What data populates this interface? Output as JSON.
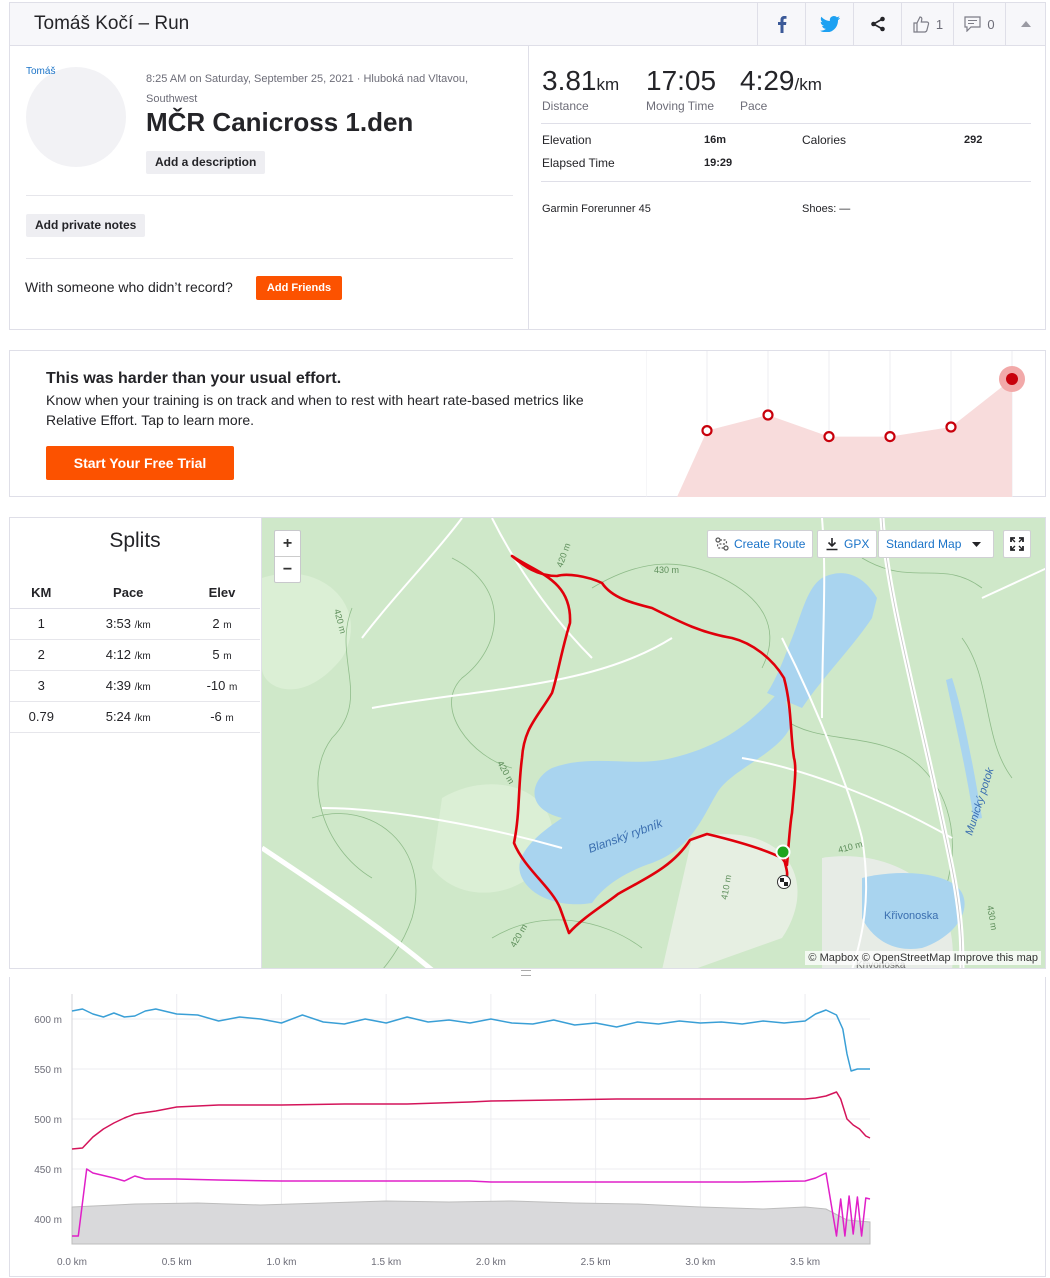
{
  "header": {
    "title": "Tomáš Kočí – Run",
    "kudos_count": "1",
    "comments_count": "0"
  },
  "athlete": {
    "name": "Tomáš"
  },
  "activity": {
    "meta": "8:25 AM on Saturday, September 25, 2021 · Hluboká nad Vltavou, Southwest",
    "title": "MČR Canicross 1.den",
    "add_description": "Add a description",
    "add_private_notes": "Add private notes",
    "friends_prompt": "With someone who didn’t record?",
    "add_friends": "Add Friends"
  },
  "stats": {
    "distance": {
      "value": "3.81",
      "unit": "km",
      "label": "Distance"
    },
    "moving_time": {
      "value": "17:05",
      "label": "Moving Time"
    },
    "pace": {
      "value": "4:29",
      "unit": "/km",
      "label": "Pace"
    },
    "elevation": {
      "label": "Elevation",
      "value": "16m"
    },
    "calories": {
      "label": "Calories",
      "value": "292"
    },
    "elapsed": {
      "label": "Elapsed Time",
      "value": "19:29"
    },
    "device": "Garmin Forerunner 45",
    "shoes": "Shoes: —"
  },
  "effort": {
    "heading": "This was harder than your usual effort.",
    "body": "Know when your training is on track and when to rest with heart rate-based metrics like Relative Effort. Tap to learn more.",
    "cta": "Start Your Free Trial",
    "points": [
      0.47,
      0.6,
      0.42,
      0.42,
      0.5,
      0.9
    ]
  },
  "splits": {
    "title": "Splits",
    "headers": [
      "KM",
      "Pace",
      "Elev"
    ],
    "rows": [
      {
        "km": "1",
        "pace": "3:53",
        "pace_unit": "/km",
        "elev": "2",
        "elev_unit": "m"
      },
      {
        "km": "2",
        "pace": "4:12",
        "pace_unit": "/km",
        "elev": "5",
        "elev_unit": "m"
      },
      {
        "km": "3",
        "pace": "4:39",
        "pace_unit": "/km",
        "elev": "-10",
        "elev_unit": "m"
      },
      {
        "km": "0.79",
        "pace": "5:24",
        "pace_unit": "/km",
        "elev": "-6",
        "elev_unit": "m"
      }
    ]
  },
  "map": {
    "zoom_in": "+",
    "zoom_out": "−",
    "create_route": "Create Route",
    "gpx": "GPX",
    "map_style": "Standard Map",
    "attribution": "© Mapbox © OpenStreetMap Improve this map",
    "labels": {
      "lake_main": "Blanský rybník",
      "lake_small": "Křivonoska",
      "lake_small_2": "Křivonoska",
      "stream": "Munický potok",
      "c430a": "430 m",
      "c430b": "430 m",
      "c420a": "420 m",
      "c420b": "420 m",
      "c420c": "420 m",
      "c420d": "420 m",
      "c410a": "410 m",
      "c410b": "410 m",
      "c430c": "430 m"
    },
    "colors": {
      "route": "#e0000b",
      "start": "#1ea51e",
      "water": "#a9d4ef",
      "land": "#cfe8c9"
    }
  },
  "chart_data": {
    "type": "line",
    "xlabel": "",
    "ylabel": "",
    "xlim": [
      0,
      3.81
    ],
    "ylim": [
      375,
      625
    ],
    "x_ticks": [
      "0.0 km",
      "0.5 km",
      "1.0 km",
      "1.5 km",
      "2.0 km",
      "2.5 km",
      "3.0 km",
      "3.5 km"
    ],
    "y_ticks": [
      "400 m",
      "450 m",
      "500 m",
      "550 m",
      "600 m"
    ],
    "x_tick_values": [
      0,
      0.5,
      1,
      1.5,
      2,
      2.5,
      3,
      3.5
    ],
    "y_tick_values": [
      400,
      450,
      500,
      550,
      600
    ],
    "series": [
      {
        "color": "#3a9fd6",
        "x": [
          0,
          0.05,
          0.1,
          0.15,
          0.2,
          0.25,
          0.3,
          0.35,
          0.4,
          0.5,
          0.6,
          0.7,
          0.8,
          0.9,
          1.0,
          1.1,
          1.2,
          1.3,
          1.4,
          1.5,
          1.6,
          1.7,
          1.8,
          1.9,
          2.0,
          2.1,
          2.2,
          2.3,
          2.4,
          2.5,
          2.6,
          2.7,
          2.8,
          2.9,
          3.0,
          3.1,
          3.2,
          3.3,
          3.4,
          3.5,
          3.55,
          3.6,
          3.65,
          3.68,
          3.7,
          3.72,
          3.75,
          3.78,
          3.81
        ],
        "y": [
          608,
          610,
          605,
          602,
          606,
          602,
          603,
          608,
          610,
          605,
          604,
          598,
          602,
          600,
          596,
          604,
          597,
          595,
          600,
          596,
          602,
          597,
          599,
          596,
          600,
          596,
          595,
          599,
          594,
          596,
          592,
          597,
          595,
          598,
          596,
          597,
          595,
          598,
          596,
          598,
          605,
          609,
          604,
          590,
          565,
          548,
          550,
          550,
          550
        ]
      },
      {
        "color": "#d4145a",
        "x": [
          0,
          0.05,
          0.1,
          0.15,
          0.2,
          0.25,
          0.3,
          0.4,
          0.5,
          0.7,
          1.0,
          1.3,
          1.6,
          1.9,
          2.0,
          2.3,
          2.6,
          2.9,
          3.2,
          3.5,
          3.55,
          3.6,
          3.65,
          3.67,
          3.7,
          3.73,
          3.76,
          3.79,
          3.81
        ],
        "y": [
          470,
          471,
          482,
          490,
          496,
          501,
          505,
          508,
          512,
          514,
          514,
          515,
          515,
          517,
          518,
          519,
          520,
          520,
          520,
          520,
          521,
          523,
          527,
          520,
          500,
          494,
          490,
          483,
          481
        ]
      },
      {
        "color": "#e020c8",
        "x": [
          0,
          0.03,
          0.07,
          0.1,
          0.2,
          0.25,
          0.3,
          0.35,
          0.5,
          0.7,
          1.0,
          1.3,
          1.6,
          1.9,
          2.0,
          2.3,
          2.6,
          2.9,
          3.2,
          3.5,
          3.55,
          3.6,
          3.65,
          3.67,
          3.69,
          3.71,
          3.73,
          3.75,
          3.77,
          3.79,
          3.81
        ],
        "y": [
          383,
          383,
          450,
          446,
          441,
          438,
          443,
          440,
          440,
          439,
          438,
          438,
          438,
          438,
          437,
          437,
          437,
          437,
          437,
          438,
          441,
          446,
          383,
          420,
          383,
          423,
          385,
          422,
          383,
          421,
          420
        ]
      },
      {
        "color": "#bdbdbd",
        "fill": true,
        "x": [
          0,
          0.3,
          0.6,
          0.9,
          1.2,
          1.5,
          1.8,
          2.1,
          2.4,
          2.7,
          3.0,
          3.3,
          3.5,
          3.6,
          3.7,
          3.81
        ],
        "y": [
          412,
          415,
          416,
          414,
          416,
          418,
          417,
          418,
          416,
          415,
          412,
          410,
          412,
          410,
          399,
          397
        ]
      }
    ]
  }
}
